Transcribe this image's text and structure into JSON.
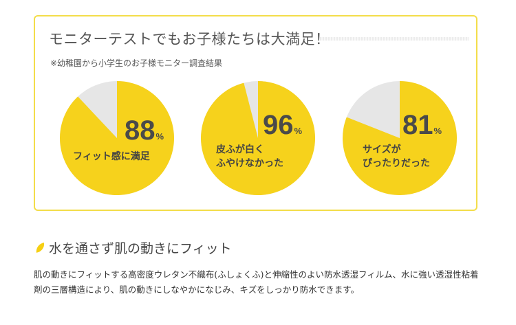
{
  "box": {
    "title": "モニターテストでもお子様たちは大満足！",
    "note": "※幼稚園から小学生のお子様モニター調査結果"
  },
  "pies": [
    {
      "value": 88,
      "unit": "%",
      "caption_lines": [
        "フィット感に満足"
      ]
    },
    {
      "value": 96,
      "unit": "%",
      "caption_lines": [
        "皮ふが白く",
        "ふやけなかった"
      ]
    },
    {
      "value": 81,
      "unit": "%",
      "caption_lines": [
        "サイズが",
        "ぴったりだった"
      ]
    }
  ],
  "colors": {
    "accent": "#f6d21c",
    "rest": "#e6e6e6",
    "border": "#f3dd4a"
  },
  "section": {
    "icon": "leaf-icon",
    "heading": "水を通さず肌の動きにフィット",
    "body": "肌の動きにフィットする高密度ウレタン不織布(ふしょくふ)と伸縮性のよい防水透湿フィルム、水に強い透湿性粘着剤の三層構造により、肌の動きにしなやかになじみ、キズをしっかり防水できます。"
  }
}
